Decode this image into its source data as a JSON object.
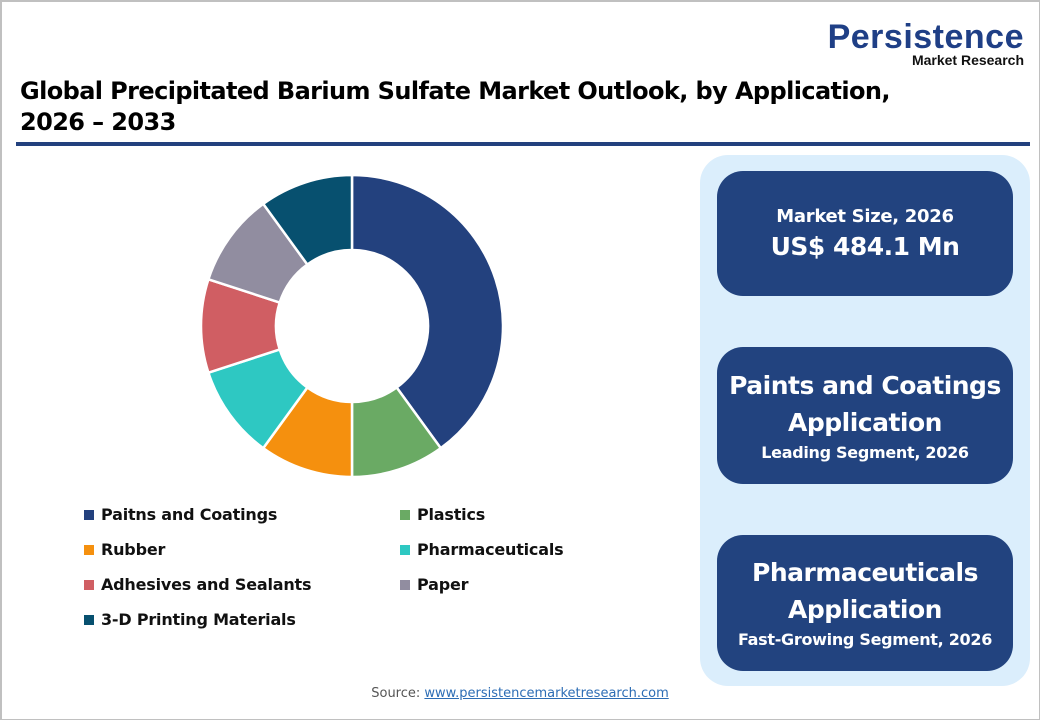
{
  "logo": {
    "name": "Persistence",
    "subtitle": "Market Research"
  },
  "title": "Global Precipitated Barium Sulfate Market Outlook, by Application, 2026 – 2033",
  "colors": {
    "brand": "#22437f",
    "panel_bg": "#dbeefc",
    "rule": "#23417e"
  },
  "chart_data": {
    "type": "pie",
    "subtype": "donut",
    "title": "Global Precipitated Barium Sulfate Market Outlook, by Application, 2026 – 2033",
    "categories": [
      "Paitns and Coatings",
      "Plastics",
      "Rubber",
      "Pharmaceuticals",
      "Adhesives and Sealants",
      "Paper",
      "3-D Printing Materials"
    ],
    "values": [
      40,
      10,
      10,
      10,
      10,
      10,
      10
    ],
    "colors": [
      "#23417e",
      "#6aaa64",
      "#f5900e",
      "#2ec8c2",
      "#d05e63",
      "#918da0",
      "#07506f"
    ],
    "start_angle_deg": 0,
    "direction": "clockwise",
    "legend_position": "bottom",
    "data_labels": false
  },
  "legend": [
    {
      "label": "Paitns and Coatings",
      "color": "#23417e"
    },
    {
      "label": "Plastics",
      "color": "#6aaa64"
    },
    {
      "label": "Rubber",
      "color": "#f5900e"
    },
    {
      "label": "Pharmaceuticals",
      "color": "#2ec8c2"
    },
    {
      "label": "Adhesives and Sealants",
      "color": "#d05e63"
    },
    {
      "label": "Paper",
      "color": "#918da0"
    },
    {
      "label": "3-D Printing Materials",
      "color": "#07506f"
    }
  ],
  "cards": {
    "market_size": {
      "label": "Market Size, 2026",
      "value": "US$ 484.1 Mn"
    },
    "leading": {
      "line1": "Paints and Coatings",
      "line2": "Application",
      "sub": "Leading Segment, 2026"
    },
    "fastest": {
      "line1": "Pharmaceuticals",
      "line2": "Application",
      "sub": "Fast-Growing Segment, 2026"
    }
  },
  "source": {
    "prefix": "Source: ",
    "link": "www.persistencemarketresearch.com"
  }
}
